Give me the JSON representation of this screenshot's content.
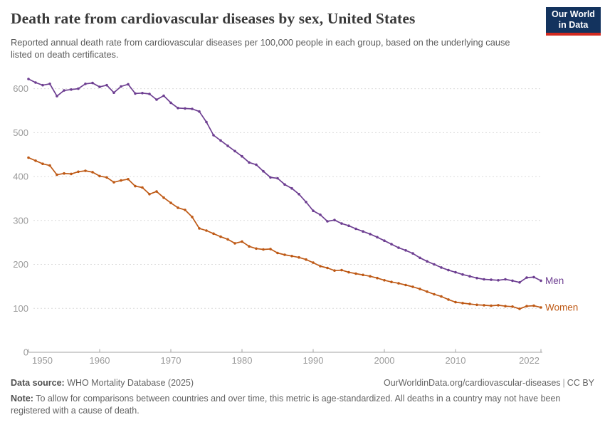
{
  "header": {
    "title": "Death rate from cardiovascular diseases by sex, United States",
    "subtitle": "Reported annual death rate from cardiovascular diseases per 100,000 people in each group, based on the underlying cause listed on death certificates.",
    "logo": {
      "line1": "Our World",
      "line2": "in Data",
      "bg_color": "#13335e",
      "bar_color": "#d22a20"
    }
  },
  "chart_data": {
    "type": "line",
    "title": "Death rate from cardiovascular diseases by sex, United States",
    "xlabel": "",
    "ylabel": "",
    "x_range": [
      1950,
      2022
    ],
    "ylim": [
      0,
      640
    ],
    "grid": "horizontal-dashed",
    "legend_position": "end-of-line",
    "x_ticks": [
      1950,
      1960,
      1970,
      1980,
      1990,
      2000,
      2010,
      2022
    ],
    "y_ticks": [
      0,
      100,
      200,
      300,
      400,
      500,
      600
    ],
    "x": [
      1950,
      1951,
      1952,
      1953,
      1954,
      1955,
      1956,
      1957,
      1958,
      1959,
      1960,
      1961,
      1962,
      1963,
      1964,
      1965,
      1966,
      1967,
      1968,
      1969,
      1970,
      1971,
      1972,
      1973,
      1974,
      1975,
      1976,
      1977,
      1978,
      1979,
      1980,
      1981,
      1982,
      1983,
      1984,
      1985,
      1986,
      1987,
      1988,
      1989,
      1990,
      1991,
      1992,
      1993,
      1994,
      1995,
      1996,
      1997,
      1998,
      1999,
      2000,
      2001,
      2002,
      2003,
      2004,
      2005,
      2006,
      2007,
      2008,
      2009,
      2010,
      2011,
      2012,
      2013,
      2014,
      2015,
      2016,
      2017,
      2018,
      2019,
      2020,
      2021,
      2022
    ],
    "series": [
      {
        "name": "Men",
        "color": "#6d3e91",
        "values": [
          622,
          614,
          608,
          611,
          583,
          596,
          598,
          600,
          611,
          613,
          604,
          608,
          591,
          605,
          610,
          589,
          590,
          588,
          575,
          584,
          568,
          556,
          555,
          554,
          548,
          524,
          494,
          482,
          470,
          458,
          446,
          432,
          427,
          412,
          398,
          396,
          382,
          373,
          360,
          342,
          322,
          313,
          298,
          301,
          293,
          288,
          281,
          275,
          269,
          262,
          254,
          246,
          238,
          232,
          225,
          215,
          207,
          200,
          193,
          187,
          182,
          177,
          173,
          169,
          166,
          165,
          164,
          166,
          163,
          159,
          170,
          171,
          163
        ]
      },
      {
        "name": "Women",
        "color": "#be5915",
        "values": [
          443,
          436,
          429,
          425,
          404,
          407,
          406,
          411,
          413,
          410,
          401,
          398,
          387,
          391,
          394,
          378,
          375,
          360,
          366,
          352,
          340,
          329,
          324,
          308,
          282,
          277,
          270,
          263,
          257,
          248,
          252,
          241,
          236,
          234,
          235,
          226,
          222,
          219,
          216,
          211,
          204,
          196,
          192,
          186,
          187,
          182,
          179,
          176,
          173,
          169,
          164,
          160,
          157,
          153,
          149,
          144,
          138,
          132,
          127,
          120,
          114,
          112,
          110,
          108,
          107,
          106,
          107,
          105,
          104,
          99,
          105,
          106,
          102
        ]
      }
    ]
  },
  "footer": {
    "source_label": "Data source:",
    "source_value": " WHO Mortality Database (2025)",
    "link": "OurWorldinData.org/cardiovascular-diseases",
    "separator": "|",
    "license": "CC BY",
    "note_label": "Note:",
    "note_value": " To allow for comparisons between countries and over time, this metric is age-standardized. All deaths in a country may not have been registered with a cause of death."
  }
}
